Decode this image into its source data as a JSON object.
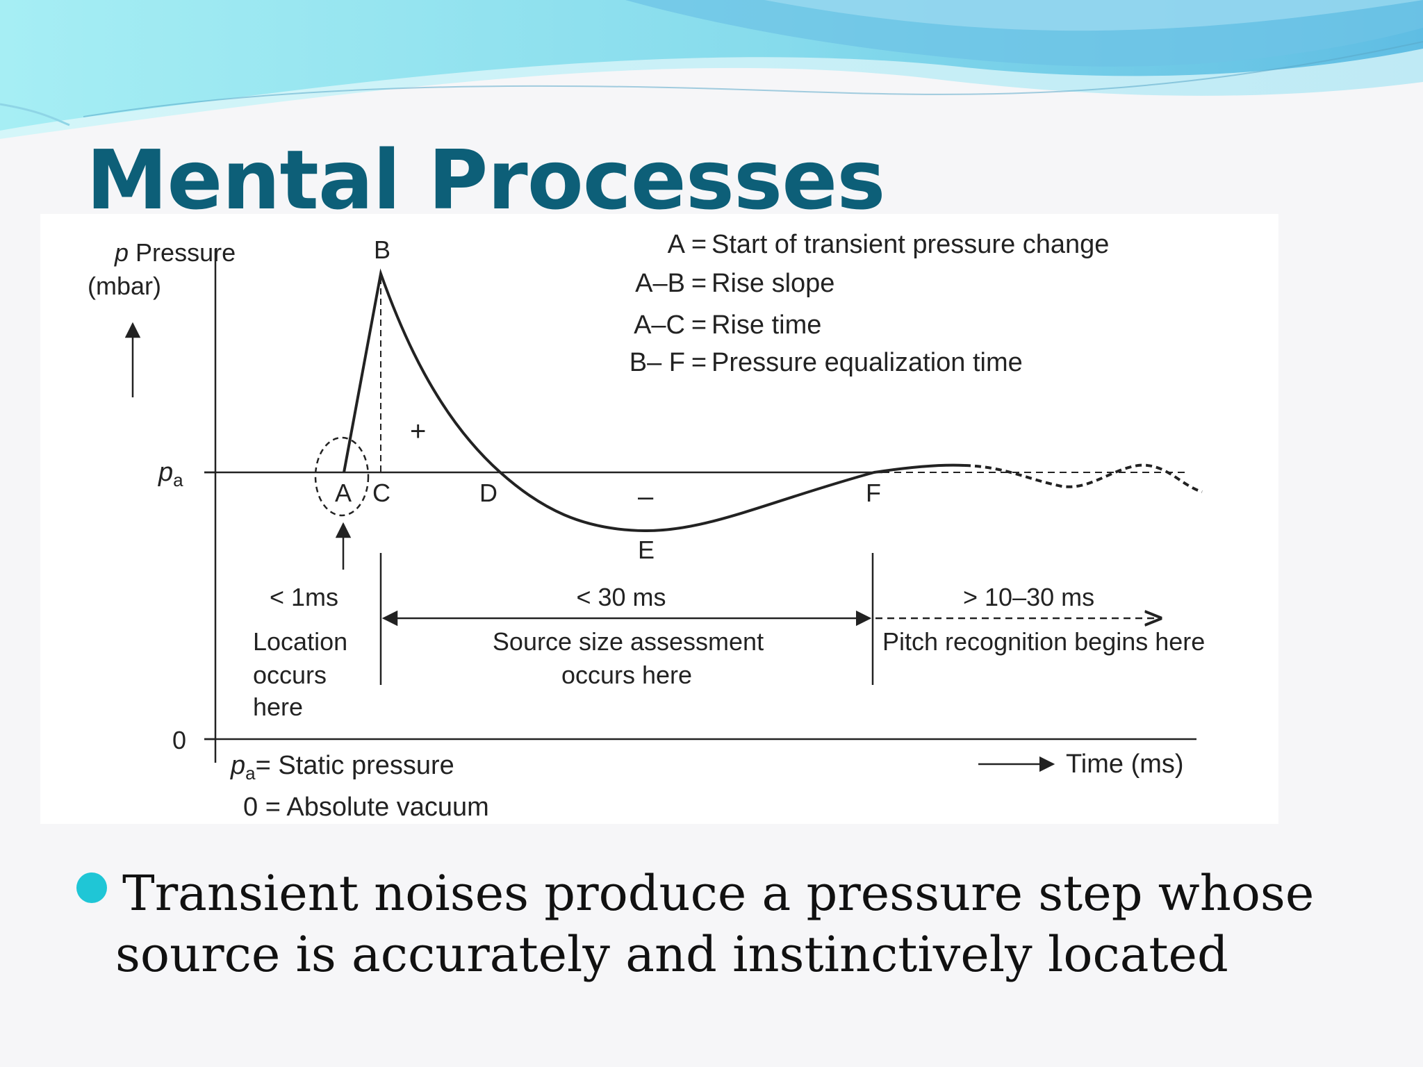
{
  "slide": {
    "title": "Mental Processes",
    "bullet": {
      "line1": "Transient noises produce a pressure step whose",
      "line2": "source is accurately and instinctively located"
    }
  },
  "figure": {
    "y_axis": {
      "symbol": "p",
      "label": "Pressure",
      "unit": "(mbar)"
    },
    "pa_symbol": "p",
    "pa_subscript": "a",
    "zero_label": "0",
    "points": {
      "A": "A",
      "B": "B",
      "C": "C",
      "D": "D",
      "E": "E",
      "F": "F"
    },
    "signs": {
      "positive": "+",
      "negative": "–"
    },
    "legend": [
      {
        "key": "A",
        "eq": "=",
        "desc": "Start of transient pressure change"
      },
      {
        "key": "A–B",
        "eq": "=",
        "desc": "Rise slope"
      },
      {
        "key": "A–C",
        "eq": "=",
        "desc": "Rise time"
      },
      {
        "key": "B– F",
        "eq": "=",
        "desc": "Pressure equalization time"
      }
    ],
    "phases": {
      "location": {
        "time": "< 1ms",
        "line1": "Location",
        "line2": "occurs",
        "line3": "here"
      },
      "source": {
        "time": "< 30 ms",
        "line1": "Source size assessment",
        "line2": "occurs here"
      },
      "pitch": {
        "time": "> 10–30 ms",
        "line1": "Pitch recognition begins here"
      }
    },
    "footer": {
      "static_desc": "= Static pressure",
      "vacuum_desc": "0 = Absolute vacuum",
      "time_label": "Time (ms)"
    }
  },
  "colors": {
    "title": "#0d5f78",
    "bullet": "#1fc6d6",
    "wave_light": "#8fe6f0",
    "wave_dark": "#6ec3e6"
  }
}
